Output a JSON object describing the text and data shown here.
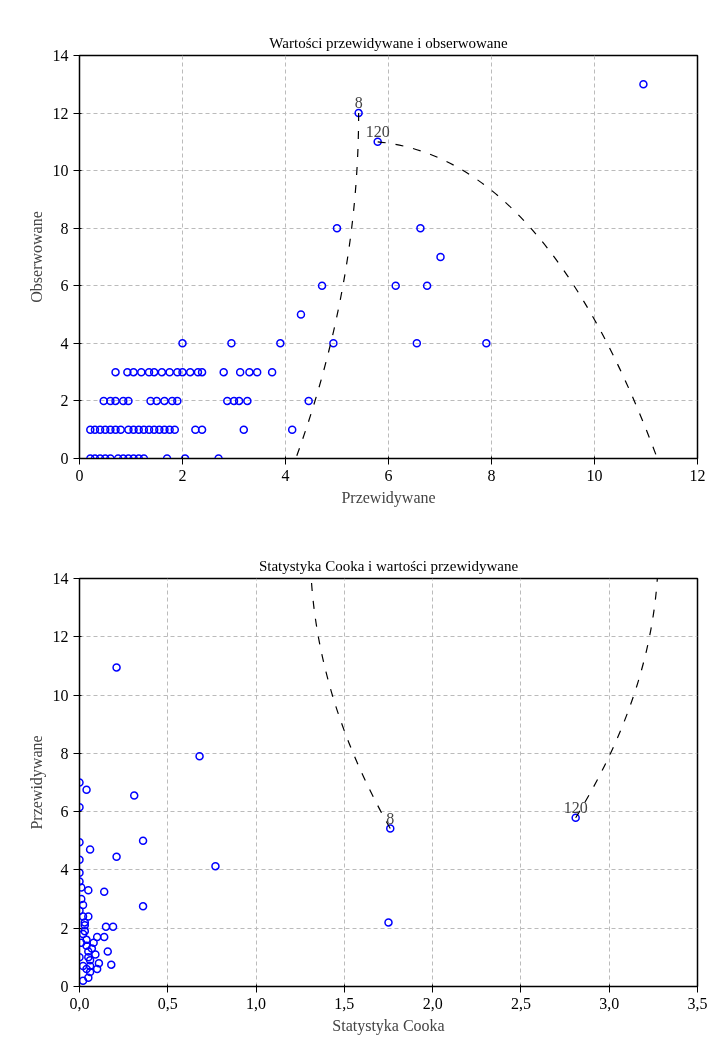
{
  "chart_data": [
    {
      "type": "scatter",
      "title": "Wartości przewidywane i obserwowane",
      "xlabel": "Przewidywane",
      "ylabel": "Obserwowane",
      "marker": "circle",
      "grid": true,
      "xlim": [
        0,
        12
      ],
      "ylim": [
        0,
        14
      ],
      "xticks": [
        0,
        2,
        4,
        6,
        8,
        10,
        12
      ],
      "yticks": [
        0,
        2,
        4,
        6,
        8,
        10,
        12,
        14
      ],
      "series": [
        {
          "color": "#0000ff",
          "x": [
            0.21,
            0.3,
            0.4,
            0.5,
            0.6,
            0.75,
            0.85,
            0.95,
            1.05,
            1.15,
            1.25,
            1.7,
            2.05,
            2.7,
            0.21,
            0.3,
            0.4,
            0.5,
            0.6,
            0.7,
            0.8,
            0.95,
            1.05,
            1.15,
            1.25,
            1.35,
            1.45,
            1.55,
            1.65,
            1.75,
            1.85,
            2.25,
            2.38,
            3.19,
            4.13,
            0.47,
            0.6,
            0.7,
            0.85,
            0.95,
            1.38,
            1.5,
            1.65,
            1.8,
            1.9,
            2.87,
            3.0,
            3.1,
            3.26,
            4.45,
            0.7,
            0.93,
            1.05,
            1.2,
            1.35,
            1.45,
            1.6,
            1.75,
            1.9,
            2.0,
            2.15,
            2.3,
            2.38,
            2.8,
            3.12,
            3.3,
            3.45,
            3.74,
            2.0,
            2.95,
            3.9,
            4.93,
            6.55,
            7.9,
            4.3,
            4.71,
            6.14,
            6.75,
            7.01,
            5.0,
            6.62,
            5.79,
            5.42,
            10.95
          ],
          "values": [
            0,
            0,
            0,
            0,
            0,
            0,
            0,
            0,
            0,
            0,
            0,
            0,
            0,
            0,
            1,
            1,
            1,
            1,
            1,
            1,
            1,
            1,
            1,
            1,
            1,
            1,
            1,
            1,
            1,
            1,
            1,
            1,
            1,
            1,
            1,
            2,
            2,
            2,
            2,
            2,
            2,
            2,
            2,
            2,
            2,
            2,
            2,
            2,
            2,
            2,
            3,
            3,
            3,
            3,
            3,
            3,
            3,
            3,
            3,
            3,
            3,
            3,
            3,
            3,
            3,
            3,
            3,
            3,
            4,
            4,
            4,
            4,
            4,
            4,
            5,
            6,
            6,
            6,
            7,
            8,
            8,
            11,
            12,
            13
          ]
        }
      ],
      "annotations": [
        {
          "text": "8",
          "x": 5.42,
          "y": 12
        },
        {
          "text": "120",
          "x": 5.79,
          "y": 11
        }
      ]
    },
    {
      "type": "scatter",
      "title": "Statystyka Cooka i wartości przewidywane",
      "xlabel": "Statystyka Cooka",
      "ylabel": "Przewidywane",
      "marker": "circle",
      "grid": true,
      "xlim": [
        0,
        3.5
      ],
      "ylim": [
        0,
        14
      ],
      "xticks": [
        {
          "value": 0,
          "label": "0,0"
        },
        {
          "value": 0.5,
          "label": "0,5"
        },
        {
          "value": 1,
          "label": "1,0"
        },
        {
          "value": 1.5,
          "label": "1,5"
        },
        {
          "value": 2,
          "label": "2,0"
        },
        {
          "value": 2.5,
          "label": "2,5"
        },
        {
          "value": 3,
          "label": "3,0"
        },
        {
          "value": 3.5,
          "label": "3,5"
        }
      ],
      "yticks": [
        0,
        2,
        4,
        6,
        8,
        10,
        12,
        14
      ],
      "series": [
        {
          "color": "#0000ff",
          "x": [
            0.21,
            0.68,
            0.77,
            0.36,
            0.31,
            0.21,
            0.36,
            0.14,
            0.04,
            0.06,
            0.0,
            0.0,
            0.0,
            0.05,
            0.15,
            0.19,
            0.14,
            0.16,
            0.18,
            1.76,
            1.75,
            2.81,
            0.0,
            0.0,
            0.0,
            0.01,
            0.01,
            0.02,
            0.02,
            0.03,
            0.03,
            0.04,
            0.04,
            0.05,
            0.05,
            0.06,
            0.07,
            0.08,
            0.09,
            0.1,
            0.11,
            0.02,
            0.04,
            0.05,
            0.06,
            0.0,
            0.01,
            0.02,
            0.03,
            0.05,
            0.06,
            0.1,
            0.0,
            0.02
          ],
          "values": [
            10.95,
            7.9,
            4.13,
            5.0,
            6.55,
            4.45,
            2.75,
            3.25,
            6.75,
            4.7,
            4.95,
            7.0,
            6.15,
            3.3,
            2.05,
            2.05,
            1.7,
            1.2,
            0.75,
            5.42,
            2.2,
            5.79,
            4.35,
            3.9,
            3.6,
            3.4,
            3.0,
            2.8,
            2.4,
            2.1,
            1.9,
            1.6,
            1.4,
            1.2,
            1.0,
            0.9,
            1.3,
            1.5,
            1.1,
            1.7,
            0.8,
            0.7,
            0.6,
            0.3,
            0.5,
            1.0,
            1.5,
            1.8,
            2.2,
            2.4,
            0.7,
            0.6,
            2.6,
            0.2
          ]
        }
      ],
      "annotations": [
        {
          "text": "8",
          "x": 1.76,
          "y": 5.42
        },
        {
          "text": "120",
          "x": 2.81,
          "y": 5.79
        }
      ]
    }
  ]
}
